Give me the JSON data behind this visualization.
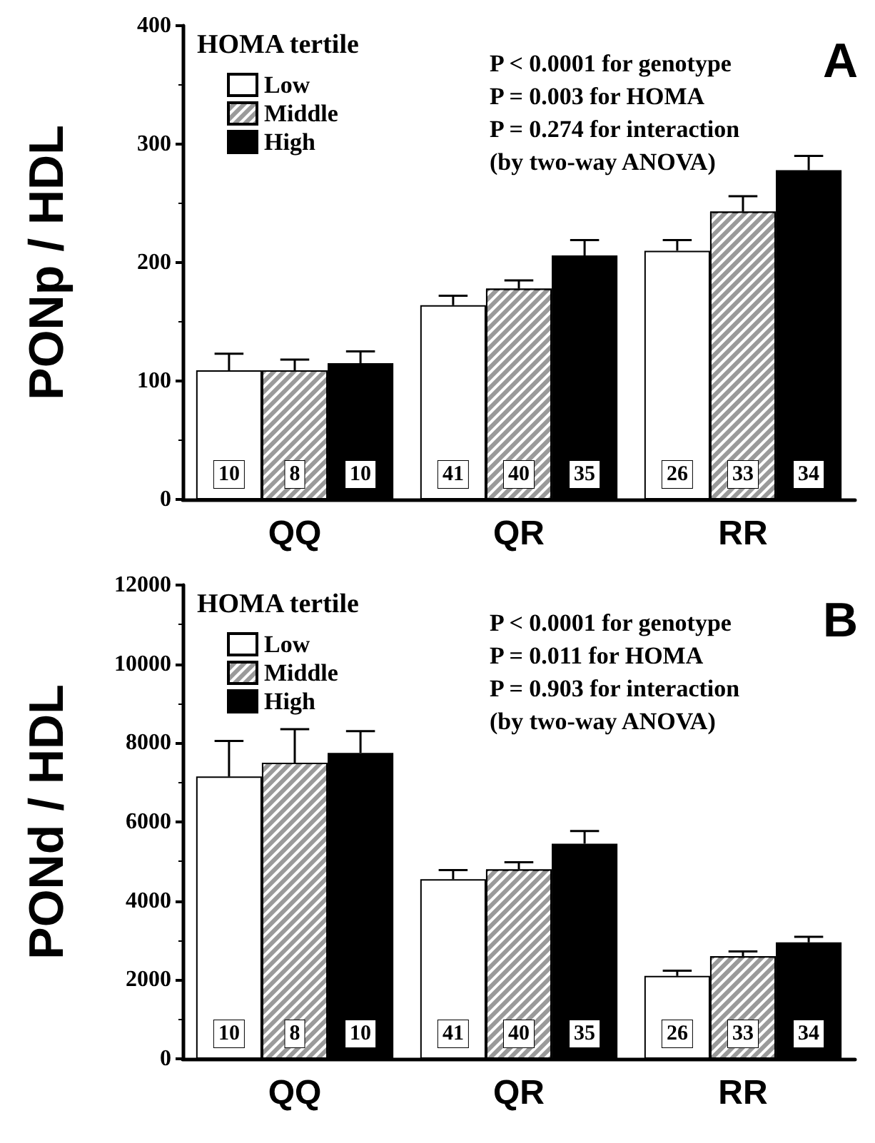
{
  "chart_data": [
    {
      "type": "bar",
      "ylabel": "PONp / HDL",
      "legend_title": "HOMA tertile",
      "legend": "top left",
      "categories": [
        "QQ",
        "QR",
        "RR"
      ],
      "ylim": [
        0,
        400
      ],
      "yticks": [
        0,
        100,
        200,
        300,
        400
      ],
      "grid": false,
      "series": [
        {
          "name": "Low",
          "color": "#ffffff",
          "values": [
            109,
            164,
            210
          ],
          "errors": [
            14,
            8,
            9
          ]
        },
        {
          "name": "Middle",
          "color": "#9a9a9a",
          "values": [
            109,
            178,
            243
          ],
          "errors": [
            9,
            7,
            13
          ]
        },
        {
          "name": "High",
          "color": "#000000",
          "values": [
            115,
            206,
            278
          ],
          "errors": [
            10,
            13,
            12
          ]
        }
      ],
      "annotations": [
        "P < 0.0001 for genotype",
        "P = 0.003 for HOMA",
        "P = 0.274 for interaction",
        "(by two-way ANOVA)",
        "A",
        {
          "text": "10",
          "x": "QQ",
          "y": 0
        },
        {
          "text": "8",
          "x": "QQ",
          "y": 0
        },
        {
          "text": "10",
          "x": "QQ",
          "y": 0
        },
        {
          "text": "41",
          "x": "QR",
          "y": 0
        },
        {
          "text": "40",
          "x": "QR",
          "y": 0
        },
        {
          "text": "35",
          "x": "QR",
          "y": 0
        },
        {
          "text": "26",
          "x": "RR",
          "y": 0
        },
        {
          "text": "33",
          "x": "RR",
          "y": 0
        },
        {
          "text": "34",
          "x": "RR",
          "y": 0
        }
      ]
    },
    {
      "type": "bar",
      "ylabel": "PONd / HDL",
      "legend_title": "HOMA tertile",
      "legend": "top left",
      "categories": [
        "QQ",
        "QR",
        "RR"
      ],
      "ylim": [
        0,
        12000
      ],
      "yticks": [
        0,
        2000,
        4000,
        6000,
        8000,
        10000,
        12000
      ],
      "grid": false,
      "series": [
        {
          "name": "Low",
          "color": "#ffffff",
          "values": [
            7150,
            4550,
            2100
          ],
          "errors": [
            900,
            230,
            130
          ]
        },
        {
          "name": "Middle",
          "color": "#9a9a9a",
          "values": [
            7500,
            4800,
            2600
          ],
          "errors": [
            850,
            180,
            120
          ]
        },
        {
          "name": "High",
          "color": "#000000",
          "values": [
            7750,
            5450,
            2950
          ],
          "errors": [
            550,
            320,
            140
          ]
        }
      ],
      "annotations": [
        "P < 0.0001 for genotype",
        "P = 0.011 for HOMA",
        "P = 0.903 for interaction",
        "(by two-way ANOVA)",
        "B",
        {
          "text": "10",
          "x": "QQ",
          "y": 0
        },
        {
          "text": "8",
          "x": "QQ",
          "y": 0
        },
        {
          "text": "10",
          "x": "QQ",
          "y": 0
        },
        {
          "text": "41",
          "x": "QR",
          "y": 0
        },
        {
          "text": "40",
          "x": "QR",
          "y": 0
        },
        {
          "text": "35",
          "x": "QR",
          "y": 0
        },
        {
          "text": "26",
          "x": "RR",
          "y": 0
        },
        {
          "text": "33",
          "x": "RR",
          "y": 0
        },
        {
          "text": "34",
          "x": "RR",
          "y": 0
        }
      ]
    }
  ]
}
